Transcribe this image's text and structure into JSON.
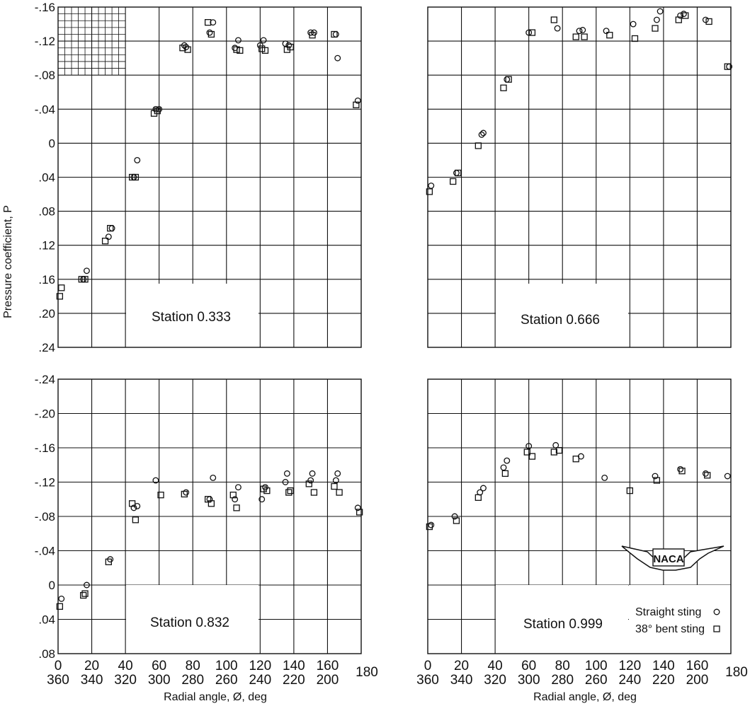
{
  "figure": {
    "ylabel": "Pressure coefficient, P",
    "xlabel": "Radial angle, Ø, deg",
    "logo": "NACA",
    "legend": [
      {
        "label": "Straight sting",
        "marker": "circle"
      },
      {
        "label": "38° bent sting",
        "marker": "square"
      }
    ]
  },
  "chart_data": [
    {
      "type": "scatter",
      "title": "Station 0.333",
      "ylabel": "Pressure coefficient, P",
      "y_ticks": [
        "-.16",
        "-.12",
        "-.08",
        "-.04",
        "0",
        ".04",
        ".08",
        ".12",
        ".16",
        ".20",
        ".24"
      ],
      "ylim": [
        0.24,
        -0.16
      ],
      "xlim": [
        0,
        180
      ],
      "grid": true,
      "series": [
        {
          "name": "Straight sting",
          "x": [
            15,
            17,
            30,
            32,
            45,
            47,
            58,
            60,
            75,
            76,
            90,
            92,
            105,
            107,
            120,
            122,
            135,
            137,
            150,
            152,
            165,
            166,
            178
          ],
          "y": [
            0.16,
            0.15,
            0.11,
            0.1,
            0.04,
            0.02,
            -0.04,
            -0.04,
            -0.115,
            -0.113,
            -0.13,
            -0.142,
            -0.112,
            -0.121,
            -0.115,
            -0.121,
            -0.117,
            -0.115,
            -0.13,
            -0.13,
            -0.128,
            -0.1,
            -0.05
          ]
        },
        {
          "name": "38° bent sting",
          "x": [
            1,
            2,
            14,
            16,
            28,
            31,
            44,
            46,
            57,
            59,
            74,
            77,
            89,
            91,
            106,
            108,
            121,
            123,
            136,
            138,
            151,
            164,
            177
          ],
          "y": [
            0.18,
            0.17,
            0.16,
            0.16,
            0.115,
            0.1,
            0.04,
            0.04,
            -0.035,
            -0.038,
            -0.112,
            -0.11,
            -0.142,
            -0.128,
            -0.11,
            -0.109,
            -0.111,
            -0.109,
            -0.11,
            -0.113,
            -0.127,
            -0.128,
            -0.045
          ]
        }
      ]
    },
    {
      "type": "scatter",
      "title": "Station 0.666",
      "y_ticks": [],
      "ylim": [
        0.24,
        -0.16
      ],
      "xlim": [
        0,
        180
      ],
      "grid": true,
      "series": [
        {
          "name": "Straight sting",
          "x": [
            2,
            17,
            32,
            33,
            47,
            60,
            77,
            90,
            92,
            106,
            122,
            136,
            138,
            150,
            152,
            165,
            179
          ],
          "y": [
            0.05,
            0.035,
            -0.01,
            -0.012,
            -0.075,
            -0.13,
            -0.135,
            -0.132,
            -0.133,
            -0.132,
            -0.14,
            -0.145,
            -0.155,
            -0.15,
            -0.152,
            -0.145,
            -0.09
          ]
        },
        {
          "name": "38° bent sting",
          "x": [
            1,
            15,
            18,
            30,
            45,
            48,
            62,
            75,
            88,
            93,
            108,
            123,
            135,
            149,
            153,
            167,
            178
          ],
          "y": [
            0.057,
            0.045,
            0.035,
            0.003,
            -0.065,
            -0.075,
            -0.13,
            -0.145,
            -0.125,
            -0.125,
            -0.127,
            -0.123,
            -0.135,
            -0.145,
            -0.15,
            -0.143,
            -0.09
          ]
        }
      ]
    },
    {
      "type": "scatter",
      "title": "Station 0.832",
      "ylabel": "Pressure coefficient, P",
      "y_ticks": [
        "-.24",
        "-.20",
        "-.16",
        "-.12",
        "-.08",
        "-.04",
        "0",
        ".04",
        ".08"
      ],
      "ylim": [
        0.08,
        -0.24
      ],
      "xlim": [
        0,
        180
      ],
      "x_ticks_primary": [
        "0",
        "20",
        "40",
        "60",
        "80",
        "100",
        "120",
        "140",
        "160"
      ],
      "x_ticks_secondary": [
        "360",
        "340",
        "320",
        "300",
        "280",
        "260",
        "240",
        "220",
        "200"
      ],
      "x_end_label": "180",
      "xlabel": "Radial angle, Ø, deg",
      "grid": true,
      "series": [
        {
          "name": "Straight sting",
          "x": [
            2,
            17,
            31,
            45,
            47,
            58,
            76,
            90,
            92,
            105,
            107,
            121,
            123,
            135,
            136,
            150,
            151,
            165,
            166,
            178
          ],
          "y": [
            0.016,
            0.0,
            -0.03,
            -0.09,
            -0.092,
            -0.122,
            -0.108,
            -0.1,
            -0.125,
            -0.1,
            -0.114,
            -0.1,
            -0.114,
            -0.12,
            -0.13,
            -0.122,
            -0.13,
            -0.122,
            -0.13,
            -0.09
          ]
        },
        {
          "name": "38° bent sting",
          "x": [
            1,
            15,
            16,
            30,
            44,
            46,
            61,
            75,
            89,
            91,
            104,
            106,
            122,
            124,
            137,
            138,
            149,
            152,
            164,
            167,
            179
          ],
          "y": [
            0.025,
            0.012,
            0.01,
            -0.027,
            -0.095,
            -0.076,
            -0.105,
            -0.106,
            -0.1,
            -0.095,
            -0.105,
            -0.09,
            -0.112,
            -0.11,
            -0.108,
            -0.11,
            -0.118,
            -0.108,
            -0.115,
            -0.108,
            -0.085
          ]
        }
      ]
    },
    {
      "type": "scatter",
      "title": "Station 0.999",
      "y_ticks": [],
      "ylim": [
        0.08,
        -0.24
      ],
      "xlim": [
        0,
        180
      ],
      "x_ticks_primary": [
        "0",
        "20",
        "40",
        "60",
        "80",
        "100",
        "120",
        "140",
        "160"
      ],
      "x_ticks_secondary": [
        "360",
        "340",
        "320",
        "300",
        "280",
        "260",
        "240",
        "220",
        "200"
      ],
      "x_end_label": "180",
      "xlabel": "Radial angle, Ø, deg",
      "grid": true,
      "series": [
        {
          "name": "Straight sting",
          "x": [
            2,
            16,
            31,
            33,
            45,
            47,
            60,
            76,
            91,
            105,
            135,
            150,
            165,
            178
          ],
          "y": [
            -0.07,
            -0.08,
            -0.108,
            -0.113,
            -0.137,
            -0.145,
            -0.162,
            -0.163,
            -0.15,
            -0.125,
            -0.127,
            -0.135,
            -0.13,
            -0.127
          ]
        },
        {
          "name": "38° bent sting",
          "x": [
            1,
            17,
            30,
            46,
            59,
            62,
            75,
            78,
            88,
            120,
            136,
            151,
            166
          ],
          "y": [
            -0.068,
            -0.075,
            -0.102,
            -0.13,
            -0.155,
            -0.15,
            -0.155,
            -0.157,
            -0.147,
            -0.11,
            -0.122,
            -0.133,
            -0.128
          ]
        }
      ]
    }
  ]
}
